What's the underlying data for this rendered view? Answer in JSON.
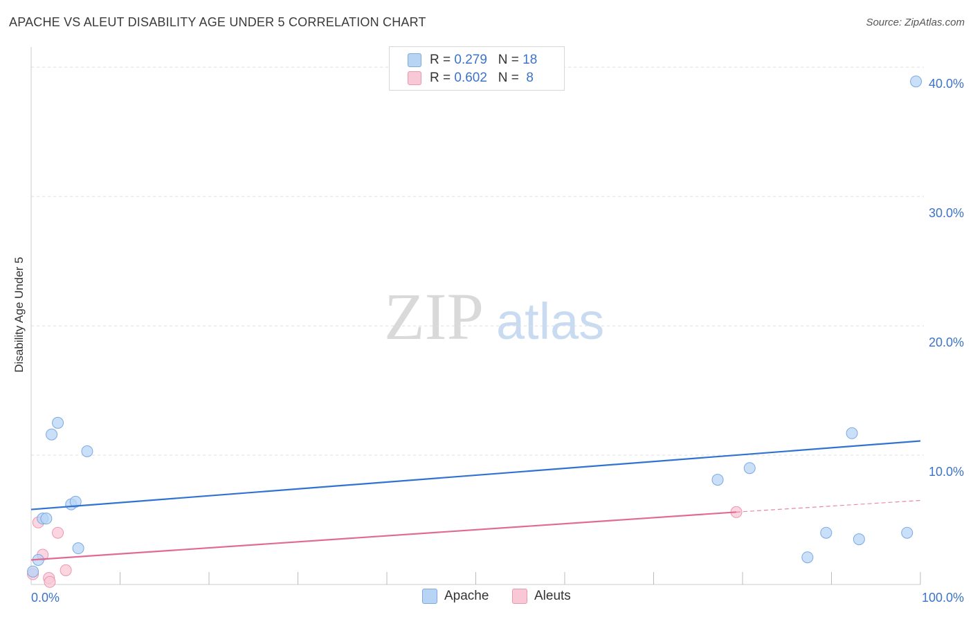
{
  "title": "APACHE VS ALEUT DISABILITY AGE UNDER 5 CORRELATION CHART",
  "source": "Source: ZipAtlas.com",
  "watermark": {
    "zip": "ZIP",
    "atlas": "atlas"
  },
  "colors": {
    "apache_fill": "#b8d4f5",
    "apache_stroke": "#7aa9e3",
    "apache_line": "#2f73d0",
    "aleut_fill": "#f9c8d6",
    "aleut_stroke": "#ec95af",
    "aleut_line": "#e06a93",
    "tick_label": "#3b73c9",
    "grid": "#dddddd"
  },
  "legend": {
    "rows": [
      {
        "series": "apache",
        "r_label": "R = ",
        "r_value": "0.279",
        "n_label": "N = ",
        "n_value": "18"
      },
      {
        "series": "aleut",
        "r_label": "R = ",
        "r_value": "0.602",
        "n_label": "N = ",
        "n_value": " 8"
      }
    ]
  },
  "chart_data": {
    "type": "scatter",
    "title": "APACHE VS ALEUT DISABILITY AGE UNDER 5 CORRELATION CHART",
    "xlabel": "",
    "ylabel": "Disability Age Under 5",
    "xlim": [
      0,
      100
    ],
    "ylim": [
      0,
      40.0
    ],
    "x_tick_labels": [
      "0.0%",
      "100.0%"
    ],
    "y_ticks": [
      10,
      20,
      30,
      40
    ],
    "y_tick_labels": [
      "10.0%",
      "20.0%",
      "30.0%",
      "40.0%"
    ],
    "grid": true,
    "series": [
      {
        "name": "Apache",
        "points": [
          [
            0.2,
            1.0
          ],
          [
            0.8,
            1.9
          ],
          [
            1.3,
            5.1
          ],
          [
            1.7,
            5.1
          ],
          [
            2.3,
            11.6
          ],
          [
            3.0,
            12.5
          ],
          [
            4.5,
            6.2
          ],
          [
            5.0,
            6.4
          ],
          [
            5.3,
            2.8
          ],
          [
            6.3,
            10.3
          ],
          [
            77.2,
            8.1
          ],
          [
            80.8,
            9.0
          ],
          [
            87.3,
            2.1
          ],
          [
            89.4,
            4.0
          ],
          [
            92.3,
            11.7
          ],
          [
            93.1,
            3.5
          ],
          [
            98.5,
            4.0
          ],
          [
            99.5,
            38.9
          ]
        ],
        "trend": {
          "x": [
            0,
            100
          ],
          "y": [
            5.8,
            11.1
          ]
        }
      },
      {
        "name": "Aleuts",
        "points": [
          [
            0.2,
            0.8
          ],
          [
            0.8,
            4.8
          ],
          [
            1.3,
            2.3
          ],
          [
            2.0,
            0.5
          ],
          [
            2.1,
            0.2
          ],
          [
            3.0,
            4.0
          ],
          [
            3.9,
            1.1
          ],
          [
            79.3,
            5.6
          ]
        ],
        "trend": {
          "x": [
            0,
            79.3
          ],
          "y": [
            1.9,
            5.6
          ]
        },
        "trend_dashed": {
          "x": [
            79.3,
            100
          ],
          "y": [
            5.6,
            6.5
          ]
        }
      }
    ]
  },
  "bottom_legend": [
    {
      "series": "apache",
      "label": "Apache"
    },
    {
      "series": "aleut",
      "label": "Aleuts"
    }
  ]
}
